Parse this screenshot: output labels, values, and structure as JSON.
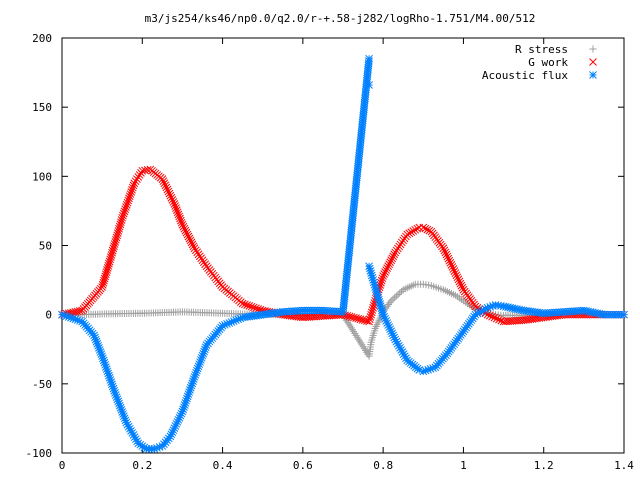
{
  "chart_data": {
    "type": "scatter",
    "title": "m3/js254/ks46/np0.0/q2.0/r-+.58-j282/logRho-1.751/M4.00/512",
    "xlim": [
      0,
      1.4
    ],
    "ylim": [
      -100,
      200
    ],
    "xticks": [
      "0",
      "0.2",
      "0.4",
      "0.6",
      "0.8",
      "1",
      "1.2",
      "1.4"
    ],
    "yticks": [
      "-100",
      "-50",
      "0",
      "50",
      "100",
      "150",
      "200"
    ],
    "legend_position": "top-right",
    "grid": false,
    "series": [
      {
        "name": "R stress",
        "marker": "plus",
        "color": "#a0a0a0",
        "x": [
          0.0,
          0.05,
          0.1,
          0.15,
          0.2,
          0.25,
          0.3,
          0.35,
          0.4,
          0.45,
          0.5,
          0.55,
          0.6,
          0.65,
          0.7,
          0.765,
          0.77,
          0.78,
          0.8,
          0.82,
          0.85,
          0.88,
          0.9,
          0.92,
          0.95,
          0.98,
          1.0,
          1.02,
          1.05,
          1.08,
          1.1,
          1.15,
          1.2,
          1.25,
          1.3,
          1.35,
          1.4
        ],
        "y": [
          0,
          0,
          0.5,
          0.8,
          1.0,
          1.5,
          2.0,
          1.5,
          1.0,
          0.5,
          0.3,
          0,
          -0.5,
          -0.3,
          0,
          -30,
          -20,
          -10,
          2,
          10,
          18,
          22,
          22,
          21,
          18,
          14,
          10,
          6,
          2,
          0,
          -0.5,
          -0.5,
          0,
          0,
          0,
          0,
          0
        ]
      },
      {
        "name": "G work",
        "marker": "cross",
        "color": "#ff0000",
        "x": [
          0.0,
          0.05,
          0.1,
          0.12,
          0.15,
          0.18,
          0.2,
          0.22,
          0.25,
          0.28,
          0.3,
          0.33,
          0.36,
          0.4,
          0.45,
          0.5,
          0.55,
          0.6,
          0.65,
          0.7,
          0.765,
          0.78,
          0.8,
          0.83,
          0.86,
          0.89,
          0.9,
          0.92,
          0.95,
          0.98,
          1.0,
          1.03,
          1.06,
          1.1,
          1.15,
          1.2,
          1.25,
          1.3,
          1.35,
          1.4
        ],
        "y": [
          0,
          3,
          20,
          40,
          70,
          95,
          104,
          105,
          98,
          80,
          65,
          48,
          35,
          20,
          8,
          3,
          0,
          -2,
          -1,
          0,
          -5,
          10,
          28,
          45,
          58,
          63,
          63,
          60,
          48,
          30,
          18,
          6,
          0,
          -5,
          -4,
          -2,
          0,
          0,
          0,
          0
        ]
      },
      {
        "name": "Acoustic flux",
        "marker": "star",
        "color": "#0080ff",
        "x": [
          0.0,
          0.05,
          0.08,
          0.1,
          0.13,
          0.16,
          0.19,
          0.21,
          0.23,
          0.25,
          0.27,
          0.3,
          0.33,
          0.36,
          0.4,
          0.45,
          0.5,
          0.55,
          0.6,
          0.65,
          0.7,
          0.765,
          0.765,
          0.765,
          0.78,
          0.8,
          0.83,
          0.86,
          0.89,
          0.9,
          0.93,
          0.96,
          1.0,
          1.03,
          1.06,
          1.08,
          1.1,
          1.15,
          1.2,
          1.25,
          1.3,
          1.35,
          1.4
        ],
        "y": [
          0,
          -5,
          -15,
          -30,
          -55,
          -78,
          -93,
          -97,
          -97,
          -95,
          -88,
          -70,
          -45,
          -22,
          -8,
          -2,
          0,
          2,
          3,
          3,
          2,
          185,
          166,
          35,
          20,
          0,
          -18,
          -33,
          -40,
          -41,
          -38,
          -28,
          -12,
          0,
          5,
          7,
          6,
          3,
          1,
          2,
          3,
          0,
          0
        ]
      }
    ]
  }
}
